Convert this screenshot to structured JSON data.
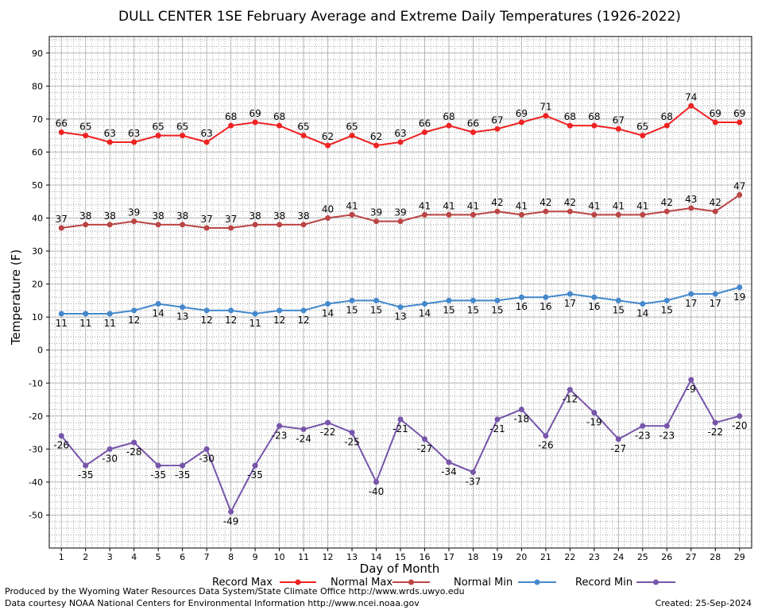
{
  "chart_data": {
    "type": "line",
    "title": "DULL CENTER 1SE February Average and Extreme Daily Temperatures (1926-2022)",
    "xlabel": "Day of Month",
    "ylabel": "Temperature (F)",
    "ylim": [
      -60,
      95
    ],
    "yticks": [
      -50,
      -40,
      -30,
      -20,
      -10,
      0,
      10,
      20,
      30,
      40,
      50,
      60,
      70,
      80,
      90
    ],
    "x": [
      1,
      2,
      3,
      4,
      5,
      6,
      7,
      8,
      9,
      10,
      11,
      12,
      13,
      14,
      15,
      16,
      17,
      18,
      19,
      20,
      21,
      22,
      23,
      24,
      25,
      26,
      27,
      28,
      29
    ],
    "grid": true,
    "legend_position": "bottom",
    "series": [
      {
        "name": "Record Max",
        "color": "#ee2222",
        "label_pos": "above",
        "values": [
          66,
          65,
          63,
          63,
          65,
          65,
          63,
          68,
          69,
          68,
          65,
          62,
          65,
          62,
          63,
          66,
          68,
          66,
          67,
          69,
          71,
          68,
          68,
          67,
          65,
          68,
          74,
          69,
          69
        ]
      },
      {
        "name": "Normal Max",
        "color": "#bb4444",
        "label_pos": "above",
        "values": [
          37,
          38,
          38,
          39,
          38,
          38,
          37,
          37,
          38,
          38,
          38,
          40,
          41,
          39,
          39,
          41,
          41,
          41,
          42,
          41,
          42,
          42,
          41,
          41,
          41,
          42,
          43,
          42,
          47
        ]
      },
      {
        "name": "Normal Min",
        "color": "#4488cc",
        "label_pos": "below",
        "values": [
          11,
          11,
          11,
          12,
          14,
          13,
          12,
          12,
          11,
          12,
          12,
          14,
          15,
          15,
          13,
          14,
          15,
          15,
          15,
          16,
          16,
          17,
          16,
          15,
          14,
          15,
          17,
          17,
          19
        ]
      },
      {
        "name": "Record Min",
        "color": "#7755aa",
        "label_pos": "below",
        "values": [
          -26,
          -35,
          -30,
          -28,
          -35,
          -35,
          -30,
          -49,
          -35,
          -23,
          -24,
          -22,
          -25,
          -40,
          -21,
          -27,
          -34,
          -37,
          -21,
          -18,
          -26,
          -12,
          -19,
          -27,
          -23,
          -23,
          -9,
          -22,
          -20
        ]
      }
    ]
  },
  "footer": {
    "left_line1": "Produced by the Wyoming Water Resources Data System/State Climate Office http://www.wrds.uwyo.edu",
    "left_line2": "Data courtesy NOAA National Centers for Environmental Information http://www.ncei.noaa.gov",
    "created": "Created:  25-Sep-2024"
  }
}
